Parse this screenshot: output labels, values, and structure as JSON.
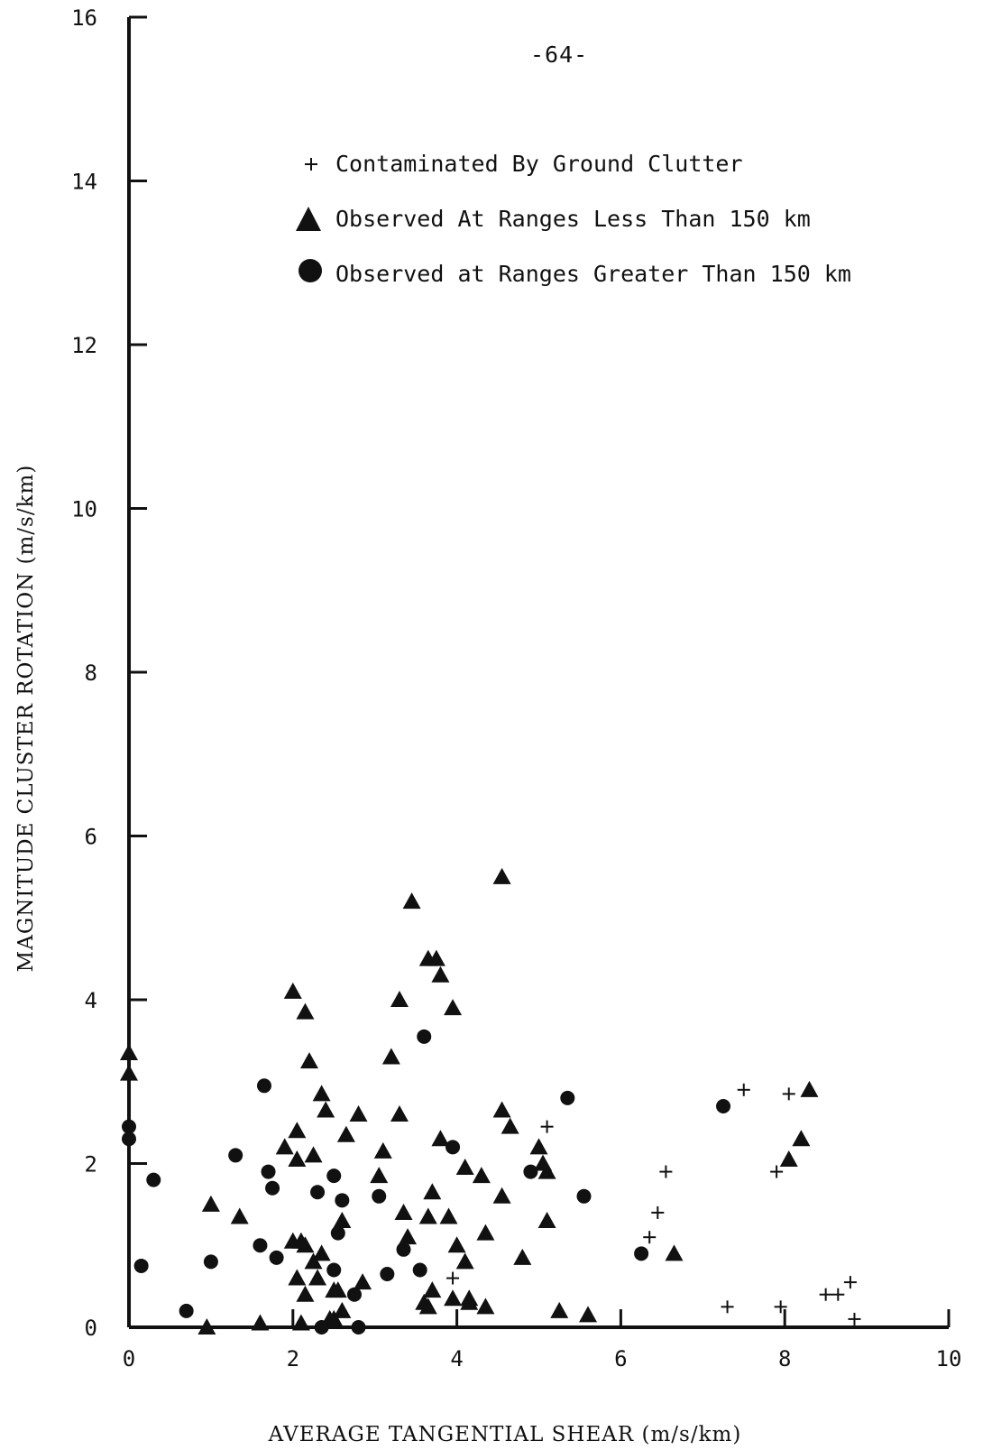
{
  "page": {
    "number": "-64-"
  },
  "chart_data": {
    "type": "scatter",
    "xlabel": "AVERAGE TANGENTIAL  SHEAR (m/s/km)",
    "ylabel": "MAGNITUDE CLUSTER ROTATION (m/s/km)",
    "xlim": [
      0,
      10
    ],
    "ylim": [
      0,
      16
    ],
    "xticks": [
      0,
      2,
      4,
      6,
      8,
      10
    ],
    "yticks": [
      0,
      2,
      4,
      6,
      8,
      10,
      12,
      14,
      16
    ],
    "xtick_labels": [
      "0",
      "2",
      "4",
      "6",
      "8",
      "10"
    ],
    "ytick_labels": [
      "0",
      "2",
      "4",
      "6",
      "8",
      "10",
      "12",
      "14",
      "16"
    ],
    "grid": false,
    "legend_position": "top-right",
    "series": [
      {
        "name": "Contaminated By Ground Clutter",
        "marker": "plus",
        "x": [
          5.1,
          7.5,
          8.05,
          6.55,
          7.9,
          6.45,
          6.35,
          3.95,
          8.8,
          8.65,
          8.5,
          7.3,
          7.95,
          8.85
        ],
        "y": [
          2.45,
          2.9,
          2.85,
          1.9,
          1.9,
          1.4,
          1.1,
          0.6,
          0.55,
          0.4,
          0.4,
          0.25,
          0.25,
          0.1
        ]
      },
      {
        "name": "Observed At Ranges Less Than 150 km",
        "marker": "triangle",
        "x": [
          0,
          0,
          1.0,
          1.35,
          1.6,
          0.95,
          2.0,
          2.15,
          2.2,
          2.35,
          2.4,
          2.05,
          1.9,
          2.05,
          2.25,
          2.15,
          2.65,
          2.8,
          2.6,
          2.0,
          2.1,
          2.25,
          2.35,
          2.05,
          2.3,
          2.55,
          2.15,
          2.5,
          2.85,
          2.6,
          2.5,
          2.1,
          2.45,
          3.45,
          3.3,
          3.2,
          3.3,
          3.1,
          3.05,
          3.65,
          3.75,
          3.8,
          3.95,
          3.7,
          3.8,
          3.65,
          3.9,
          3.35,
          3.4,
          3.7,
          3.95,
          3.6,
          3.65,
          4.1,
          4.3,
          4.1,
          4.35,
          4.0,
          4.15,
          4.35,
          4.15,
          4.55,
          4.55,
          4.65,
          4.55,
          4.8,
          5.0,
          5.05,
          5.1,
          5.1,
          5.25,
          5.6,
          6.65,
          8.3,
          8.2,
          8.05
        ],
        "y": [
          3.35,
          3.1,
          1.5,
          1.35,
          0.05,
          0.0,
          4.1,
          3.85,
          3.25,
          2.85,
          2.65,
          2.4,
          2.2,
          2.05,
          2.1,
          1.0,
          2.35,
          2.6,
          1.3,
          1.05,
          1.05,
          0.8,
          0.9,
          0.6,
          0.6,
          0.45,
          0.4,
          0.1,
          0.55,
          0.2,
          0.45,
          0.05,
          0.1,
          5.2,
          4.0,
          3.3,
          2.6,
          2.15,
          1.85,
          4.5,
          4.5,
          4.3,
          3.9,
          1.65,
          2.3,
          1.35,
          1.35,
          1.4,
          1.1,
          0.45,
          0.35,
          0.3,
          0.25,
          1.95,
          1.85,
          0.8,
          1.15,
          1.0,
          0.35,
          0.25,
          0.3,
          5.5,
          2.65,
          2.45,
          1.6,
          0.85,
          2.2,
          2.0,
          1.9,
          1.3,
          0.2,
          0.15,
          0.9,
          2.9,
          2.3,
          2.05
        ]
      },
      {
        "name": "Observed at Ranges Greater Than 150 km",
        "marker": "circle",
        "x": [
          0,
          0,
          0.3,
          0.15,
          0.7,
          1.0,
          1.3,
          1.65,
          1.75,
          1.8,
          1.7,
          1.6,
          2.5,
          2.3,
          2.6,
          2.55,
          2.5,
          2.75,
          2.35,
          2.8,
          3.05,
          3.15,
          3.35,
          3.6,
          3.55,
          3.95,
          4.9,
          5.35,
          5.55,
          6.25,
          7.25
        ],
        "y": [
          2.45,
          2.3,
          1.8,
          0.75,
          0.2,
          0.8,
          2.1,
          2.95,
          1.7,
          0.85,
          1.9,
          1.0,
          1.85,
          1.65,
          1.55,
          1.15,
          0.7,
          0.4,
          0.0,
          0.0,
          1.6,
          0.65,
          0.95,
          3.55,
          0.7,
          2.2,
          1.9,
          2.8,
          1.6,
          0.9,
          2.7
        ]
      }
    ]
  }
}
